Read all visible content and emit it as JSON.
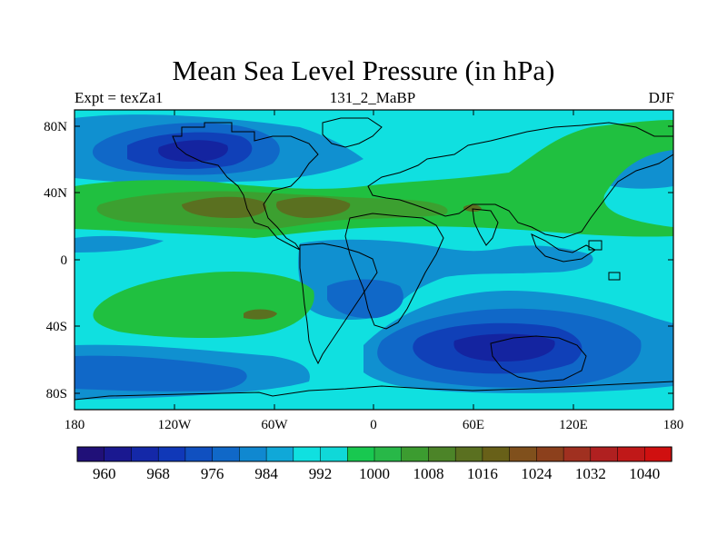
{
  "title": "Mean Sea Level Pressure (in hPa)",
  "subtitle": {
    "left": "Expt = texZa1",
    "center": "131_2_MaBP",
    "right": "DJF"
  },
  "map": {
    "lat_ticks": [
      "80N",
      "40N",
      "0",
      "40S",
      "80S"
    ],
    "lon_ticks": [
      "180",
      "120W",
      "60W",
      "0",
      "60E",
      "120E",
      "180"
    ]
  },
  "colorbar": {
    "labels": [
      "960",
      "968",
      "976",
      "984",
      "992",
      "1000",
      "1008",
      "1016",
      "1024",
      "1032",
      "1040"
    ],
    "colors": [
      "#201078",
      "#1a1890",
      "#1428a8",
      "#1038b8",
      "#1050c0",
      "#1068c8",
      "#1088d0",
      "#10a8d8",
      "#10e0e0",
      "#10d8d8",
      "#18c850",
      "#28b848",
      "#3c9c30",
      "#4c8428",
      "#5a7020",
      "#686018",
      "#80501c",
      "#8c401c",
      "#a03020",
      "#b02020",
      "#c01818",
      "#d01010"
    ]
  },
  "field_colors": {
    "very_low": "#1424a0",
    "low_deep": "#1040b8",
    "low": "#1068c8",
    "low_mid": "#1090d0",
    "mid": "#10e0e0",
    "high": "#20c040",
    "higher": "#3ca030",
    "highest": "#5a7020",
    "peak": "#6a5a20",
    "coast": "#000000"
  }
}
